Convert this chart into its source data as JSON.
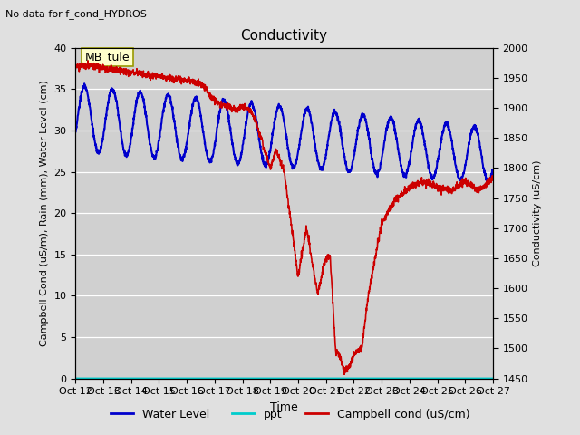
{
  "title": "Conductivity",
  "top_left_text": "No data for f_cond_HYDROS",
  "xlabel": "Time",
  "ylabel_left": "Campbell Cond (uS/m), Rain (mm), Water Level (cm)",
  "ylabel_right": "Conductivity (uS/cm)",
  "ylim_left": [
    0,
    40
  ],
  "ylim_right": [
    1450,
    2000
  ],
  "xtick_labels": [
    "Oct 12",
    "Oct 13",
    "Oct 14",
    "Oct 15",
    "Oct 16",
    "Oct 17",
    "Oct 18",
    "Oct 19",
    "Oct 20",
    "Oct 21",
    "Oct 22",
    "Oct 23",
    "Oct 24",
    "Oct 25",
    "Oct 26",
    "Oct 27"
  ],
  "ytick_left": [
    0,
    5,
    10,
    15,
    20,
    25,
    30,
    35,
    40
  ],
  "ytick_right": [
    1450,
    1500,
    1550,
    1600,
    1650,
    1700,
    1750,
    1800,
    1850,
    1900,
    1950,
    2000
  ],
  "bg_color": "#e0e0e0",
  "plot_bg_color": "#d0d0d0",
  "water_level_color": "#0000cc",
  "ppt_color": "#00cccc",
  "campbell_color": "#cc0000",
  "legend_items": [
    "Water Level",
    "ppt",
    "Campbell cond (uS/cm)"
  ],
  "legend_colors": [
    "#0000cc",
    "#00cccc",
    "#cc0000"
  ],
  "mb_tule_label": "MB_tule",
  "figsize": [
    6.4,
    4.8
  ],
  "dpi": 100
}
